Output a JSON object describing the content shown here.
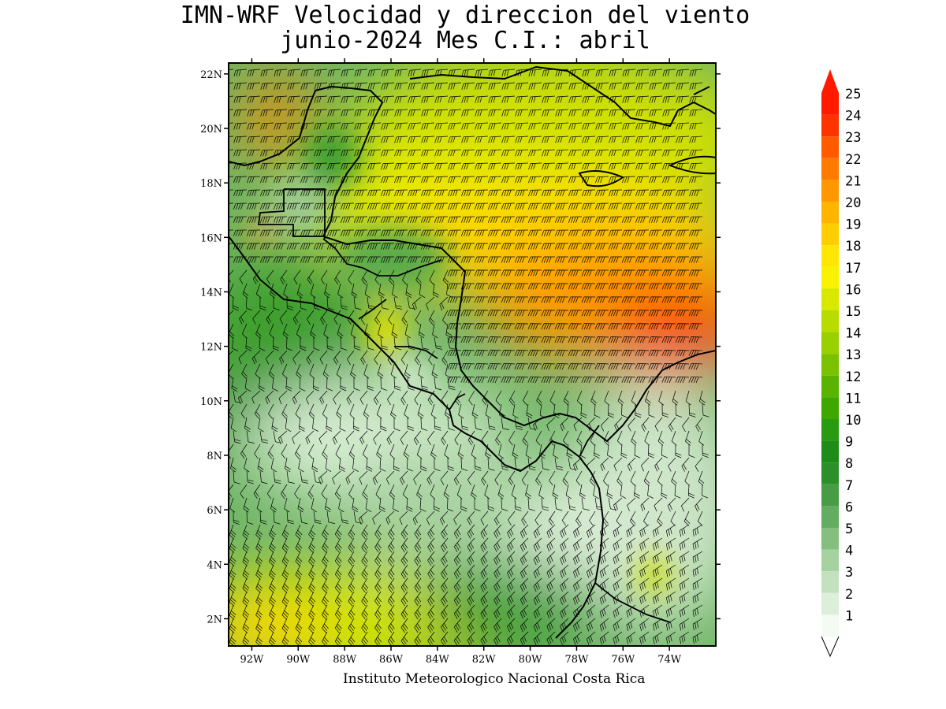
{
  "title": {
    "line1": "IMN-WRF Velocidad y direccion del viento",
    "line2": "junio-2024 Mes C.I.: abril"
  },
  "credit": "Instituto Meteorologico Nacional Costa Rica",
  "map": {
    "lon_range": [
      -93.0,
      -72.0
    ],
    "lat_range": [
      1.0,
      22.4
    ],
    "lat_ticks": [
      "22N",
      "20N",
      "18N",
      "16N",
      "14N",
      "12N",
      "10N",
      "8N",
      "6N",
      "4N",
      "2N"
    ],
    "lat_values": [
      22,
      20,
      18,
      16,
      14,
      12,
      10,
      8,
      6,
      4,
      2
    ],
    "lon_ticks": [
      "92W",
      "90W",
      "88W",
      "86W",
      "84W",
      "82W",
      "80W",
      "78W",
      "76W",
      "74W"
    ],
    "lon_values": [
      -92,
      -90,
      -88,
      -86,
      -84,
      -82,
      -80,
      -78,
      -76,
      -74
    ],
    "wind_field": "wind barbs",
    "shading_variable": "wind speed"
  },
  "colorbar": {
    "levels": [
      "25",
      "24",
      "23",
      "22",
      "21",
      "20",
      "19",
      "18",
      "17",
      "16",
      "15",
      "14",
      "13",
      "12",
      "11",
      "10",
      "9",
      "8",
      "7",
      "6",
      "5",
      "4",
      "3",
      "2",
      "1"
    ],
    "colors": [
      "#ff1a00",
      "#ff3300",
      "#ff5a00",
      "#ff7a00",
      "#ff9700",
      "#ffb400",
      "#ffce00",
      "#ffe600",
      "#f8f200",
      "#d8e800",
      "#b8dc00",
      "#98d000",
      "#7ac200",
      "#58b400",
      "#3ea800",
      "#2a9a10",
      "#1e8c18",
      "#2d8f2a",
      "#479c45",
      "#64ad60",
      "#85bf80",
      "#a6d1a0",
      "#c3e0bf",
      "#dcefd9",
      "#f3fbf2"
    ]
  }
}
